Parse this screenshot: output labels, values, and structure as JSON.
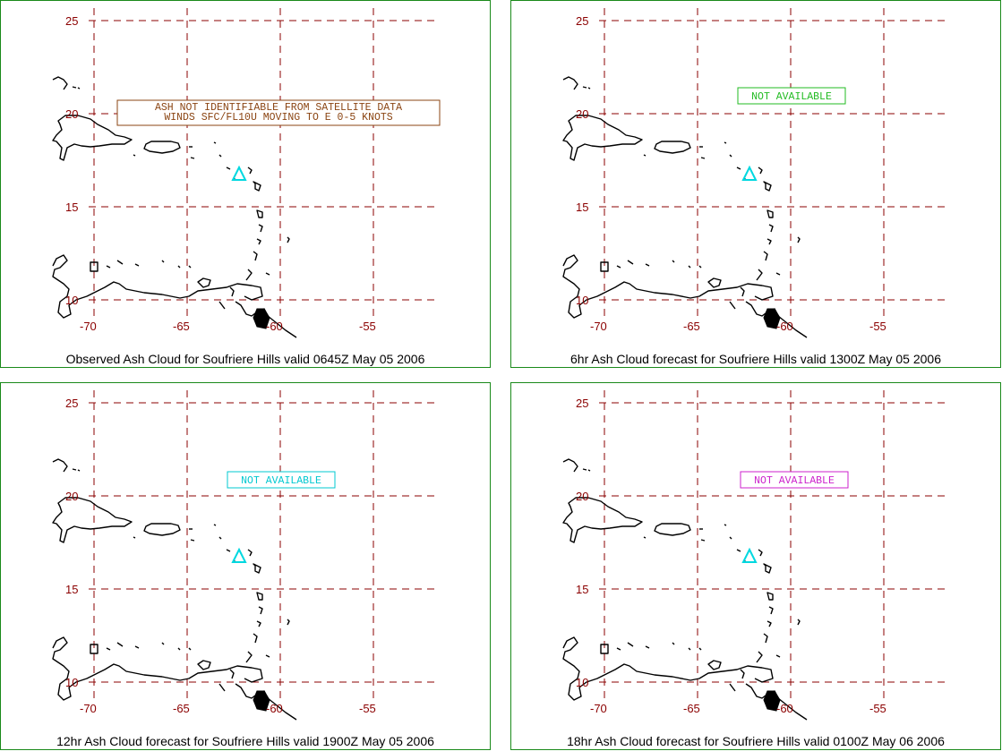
{
  "axes": {
    "lat_ticks": [
      "25",
      "20",
      "15",
      "10"
    ],
    "lon_ticks": [
      "-70",
      "-65",
      "-60",
      "-55"
    ]
  },
  "colors": {
    "border": "#1a8a1a",
    "grid": "#8b0000",
    "coast": "#000000",
    "volcano_marker": "#00d8e0"
  },
  "volcano_marker_icon": "triangle-icon",
  "panels": [
    {
      "caption": "Observed Ash Cloud for Soufriere  Hills valid 0645Z May 05 2006",
      "notice_lines": [
        "ASH NOT IDENTIFIABLE FROM SATELLITE DATA",
        "WINDS SFC/FL10U MOVING TO E 0-5 KNOTS"
      ],
      "notice_color": "#8b4513"
    },
    {
      "caption": "6hr Ash Cloud forecast for Soufriere  Hills valid 1300Z May 05 2006",
      "notice_lines": [
        "NOT AVAILABLE"
      ],
      "notice_color": "#22bb22"
    },
    {
      "caption": "12hr Ash Cloud forecast for Soufriere  Hills valid 1900Z May 05 2006",
      "notice_lines": [
        "NOT AVAILABLE"
      ],
      "notice_color": "#00c8d0"
    },
    {
      "caption": "18hr Ash Cloud forecast for Soufriere  Hills valid 0100Z May 06 2006",
      "notice_lines": [
        "NOT AVAILABLE"
      ],
      "notice_color": "#cc22cc"
    }
  ]
}
